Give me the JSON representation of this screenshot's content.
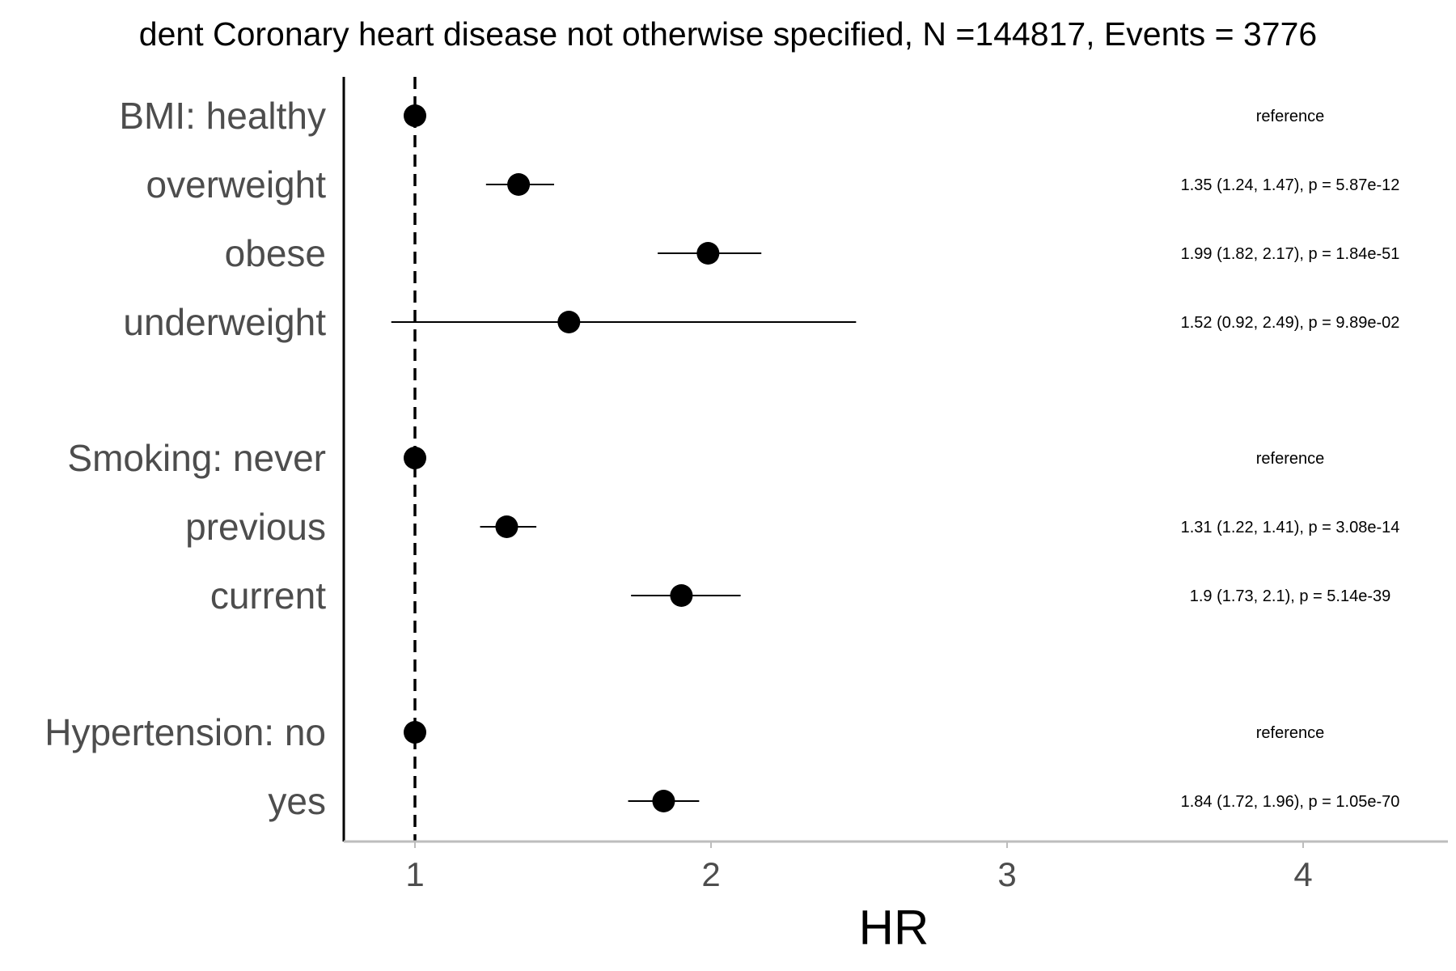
{
  "chart_data": {
    "type": "scatter",
    "subtype": "forest-plot",
    "title": "dent Coronary heart disease not otherwise specified, N =144817, Events = 3776",
    "xlabel": "HR",
    "ylabel": "",
    "xlim": [
      0.76,
      4.5
    ],
    "reference_line": 1,
    "x_ticks": [
      "1",
      "2",
      "3",
      "4"
    ],
    "grid": false,
    "rows": [
      {
        "label": "BMI: healthy",
        "hr": 1.0,
        "lower": 1.0,
        "upper": 1.0,
        "annotation": "reference"
      },
      {
        "label": "overweight",
        "hr": 1.35,
        "lower": 1.24,
        "upper": 1.47,
        "annotation": "1.35 (1.24, 1.47), p = 5.87e-12"
      },
      {
        "label": "obese",
        "hr": 1.99,
        "lower": 1.82,
        "upper": 2.17,
        "annotation": "1.99 (1.82, 2.17), p = 1.84e-51"
      },
      {
        "label": "underweight",
        "hr": 1.52,
        "lower": 0.92,
        "upper": 2.49,
        "annotation": "1.52 (0.92, 2.49), p = 9.89e-02"
      },
      {
        "label": "Smoking: never",
        "hr": 1.0,
        "lower": 1.0,
        "upper": 1.0,
        "annotation": "reference"
      },
      {
        "label": "previous",
        "hr": 1.31,
        "lower": 1.22,
        "upper": 1.41,
        "annotation": "1.31 (1.22, 1.41), p = 3.08e-14"
      },
      {
        "label": "current",
        "hr": 1.9,
        "lower": 1.73,
        "upper": 2.1,
        "annotation": "1.9 (1.73, 2.1), p = 5.14e-39"
      },
      {
        "label": "Hypertension: no",
        "hr": 1.0,
        "lower": 1.0,
        "upper": 1.0,
        "annotation": "reference"
      },
      {
        "label": "yes",
        "hr": 1.84,
        "lower": 1.72,
        "upper": 1.96,
        "annotation": "1.84 (1.72, 1.96), p = 1.05e-70"
      }
    ]
  }
}
